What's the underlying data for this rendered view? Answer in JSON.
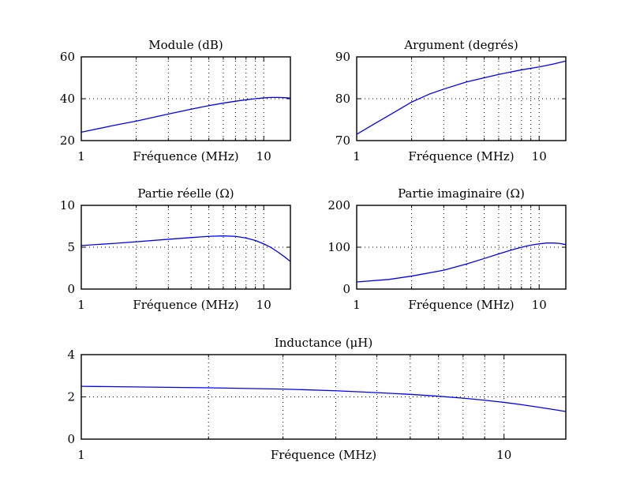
{
  "chart_data": [
    {
      "id": "module",
      "type": "line",
      "title": "Module (dB)",
      "xlabel": "Fréquence (MHz)",
      "ylabel": "",
      "xscale": "log",
      "xlim": [
        1,
        14
      ],
      "ylim": [
        20,
        60
      ],
      "yticks": [
        20,
        40,
        60
      ],
      "xtick_labels": [
        {
          "value": 1,
          "label": "1"
        },
        {
          "value": 10,
          "label": "10"
        }
      ],
      "grid": true,
      "series": [
        {
          "name": "Module",
          "color": "#0000ff",
          "x": [
            1,
            1.5,
            2,
            3,
            4,
            5,
            6,
            7,
            8,
            9,
            10,
            11,
            12,
            13,
            14
          ],
          "y": [
            24,
            27.2,
            29.3,
            32.7,
            35,
            36.7,
            37.9,
            38.8,
            39.5,
            40,
            40.4,
            40.6,
            40.6,
            40.5,
            40.3
          ]
        }
      ]
    },
    {
      "id": "argument",
      "type": "line",
      "title": "Argument (degrés)",
      "xlabel": "Fréquence (MHz)",
      "ylabel": "",
      "xscale": "log",
      "xlim": [
        1,
        14
      ],
      "ylim": [
        70,
        90
      ],
      "yticks": [
        70,
        80,
        90
      ],
      "xtick_labels": [
        {
          "value": 1,
          "label": "1"
        },
        {
          "value": 10,
          "label": "10"
        }
      ],
      "grid": true,
      "series": [
        {
          "name": "Argument",
          "color": "#0000ff",
          "x": [
            1,
            1.25,
            1.5,
            2,
            2.5,
            3,
            4,
            5,
            6,
            7,
            8,
            10,
            12,
            14
          ],
          "y": [
            71.5,
            74,
            76,
            79.2,
            81.1,
            82.3,
            84,
            85,
            85.8,
            86.4,
            86.9,
            87.6,
            88.3,
            89
          ]
        }
      ]
    },
    {
      "id": "real",
      "type": "line",
      "title": "Partie réelle (Ω)",
      "xlabel": "Fréquence (MHz)",
      "ylabel": "",
      "xscale": "log",
      "xlim": [
        1,
        14
      ],
      "ylim": [
        0,
        10
      ],
      "yticks": [
        0,
        5,
        10
      ],
      "xtick_labels": [
        {
          "value": 1,
          "label": "1"
        },
        {
          "value": 10,
          "label": "10"
        }
      ],
      "grid": true,
      "series": [
        {
          "name": "Partie réelle",
          "color": "#0000ff",
          "x": [
            1,
            1.5,
            2,
            3,
            4,
            5,
            6,
            7,
            8,
            9,
            10,
            11,
            12,
            13,
            14
          ],
          "y": [
            5.2,
            5.45,
            5.65,
            5.95,
            6.15,
            6.3,
            6.35,
            6.3,
            6.1,
            5.8,
            5.4,
            4.95,
            4.4,
            3.85,
            3.3
          ]
        }
      ]
    },
    {
      "id": "imaginary",
      "type": "line",
      "title": "Partie imaginaire (Ω)",
      "xlabel": "Fréquence (MHz)",
      "ylabel": "",
      "xscale": "log",
      "xlim": [
        1,
        14
      ],
      "ylim": [
        0,
        200
      ],
      "yticks": [
        0,
        100,
        200
      ],
      "xtick_labels": [
        {
          "value": 1,
          "label": "1"
        },
        {
          "value": 10,
          "label": "10"
        }
      ],
      "grid": true,
      "series": [
        {
          "name": "Partie imaginaire",
          "color": "#0000ff",
          "x": [
            1,
            1.5,
            2,
            3,
            4,
            5,
            6,
            7,
            8,
            9,
            10,
            11,
            12,
            13,
            14
          ],
          "y": [
            17,
            23,
            31,
            45,
            60,
            73,
            84,
            93,
            100,
            105,
            108,
            110,
            110,
            109,
            106
          ]
        }
      ]
    },
    {
      "id": "inductance",
      "type": "line",
      "title": "Inductance (μH)",
      "xlabel": "Fréquence (MHz)",
      "ylabel": "",
      "xscale": "log",
      "xlim": [
        1,
        14
      ],
      "ylim": [
        0,
        4
      ],
      "yticks": [
        0,
        2,
        4
      ],
      "xtick_labels": [
        {
          "value": 1,
          "label": "1"
        },
        {
          "value": 10,
          "label": "10"
        }
      ],
      "grid": true,
      "series": [
        {
          "name": "Inductance",
          "color": "#0000ff",
          "x": [
            1,
            2,
            3,
            4,
            5,
            6,
            7,
            8,
            9,
            10,
            11,
            12,
            13,
            14
          ],
          "y": [
            2.5,
            2.43,
            2.37,
            2.29,
            2.2,
            2.12,
            2.03,
            1.94,
            1.84,
            1.74,
            1.63,
            1.52,
            1.41,
            1.31
          ]
        }
      ]
    }
  ]
}
